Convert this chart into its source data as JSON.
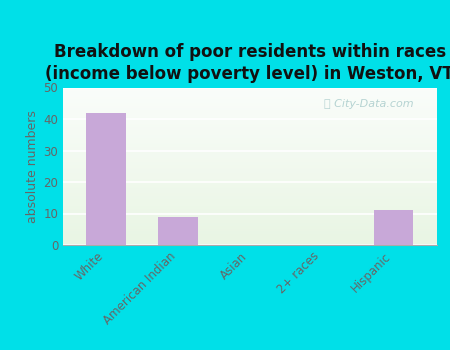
{
  "title": "Breakdown of poor residents within races\n(income below poverty level) in Weston, VT",
  "categories": [
    "White",
    "American Indian",
    "Asian",
    "2+ races",
    "Hispanic"
  ],
  "values": [
    42,
    9,
    0,
    0,
    11
  ],
  "bar_color": "#c8a8d8",
  "ylabel": "absolute numbers",
  "ylim": [
    0,
    50
  ],
  "yticks": [
    0,
    10,
    20,
    30,
    40,
    50
  ],
  "outer_background": "#00e0e8",
  "title_fontsize": 12,
  "axis_fontsize": 9,
  "tick_fontsize": 8.5,
  "watermark": "City-Data.com"
}
